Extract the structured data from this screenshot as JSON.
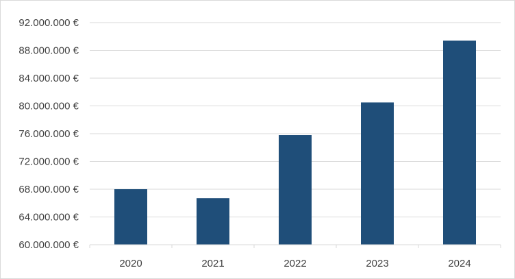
{
  "chart_data": {
    "type": "bar",
    "title": "",
    "xlabel": "",
    "ylabel": "",
    "categories": [
      "2020",
      "2021",
      "2022",
      "2023",
      "2024"
    ],
    "values": [
      68000000,
      66700000,
      75800000,
      80500000,
      89400000
    ],
    "ylim": [
      60000000,
      92000000
    ],
    "yticks": [
      60000000,
      64000000,
      68000000,
      72000000,
      76000000,
      80000000,
      84000000,
      88000000,
      92000000
    ],
    "ytick_labels": [
      "60.000.000 €",
      "64.000.000 €",
      "68.000.000 €",
      "72.000.000 €",
      "76.000.000 €",
      "80.000.000 €",
      "84.000.000 €",
      "88.000.000 €",
      "92.000.000 €"
    ],
    "grid": true,
    "legend": "none",
    "bar_color": "#1f4e79",
    "grid_color": "#d9d9d9"
  }
}
